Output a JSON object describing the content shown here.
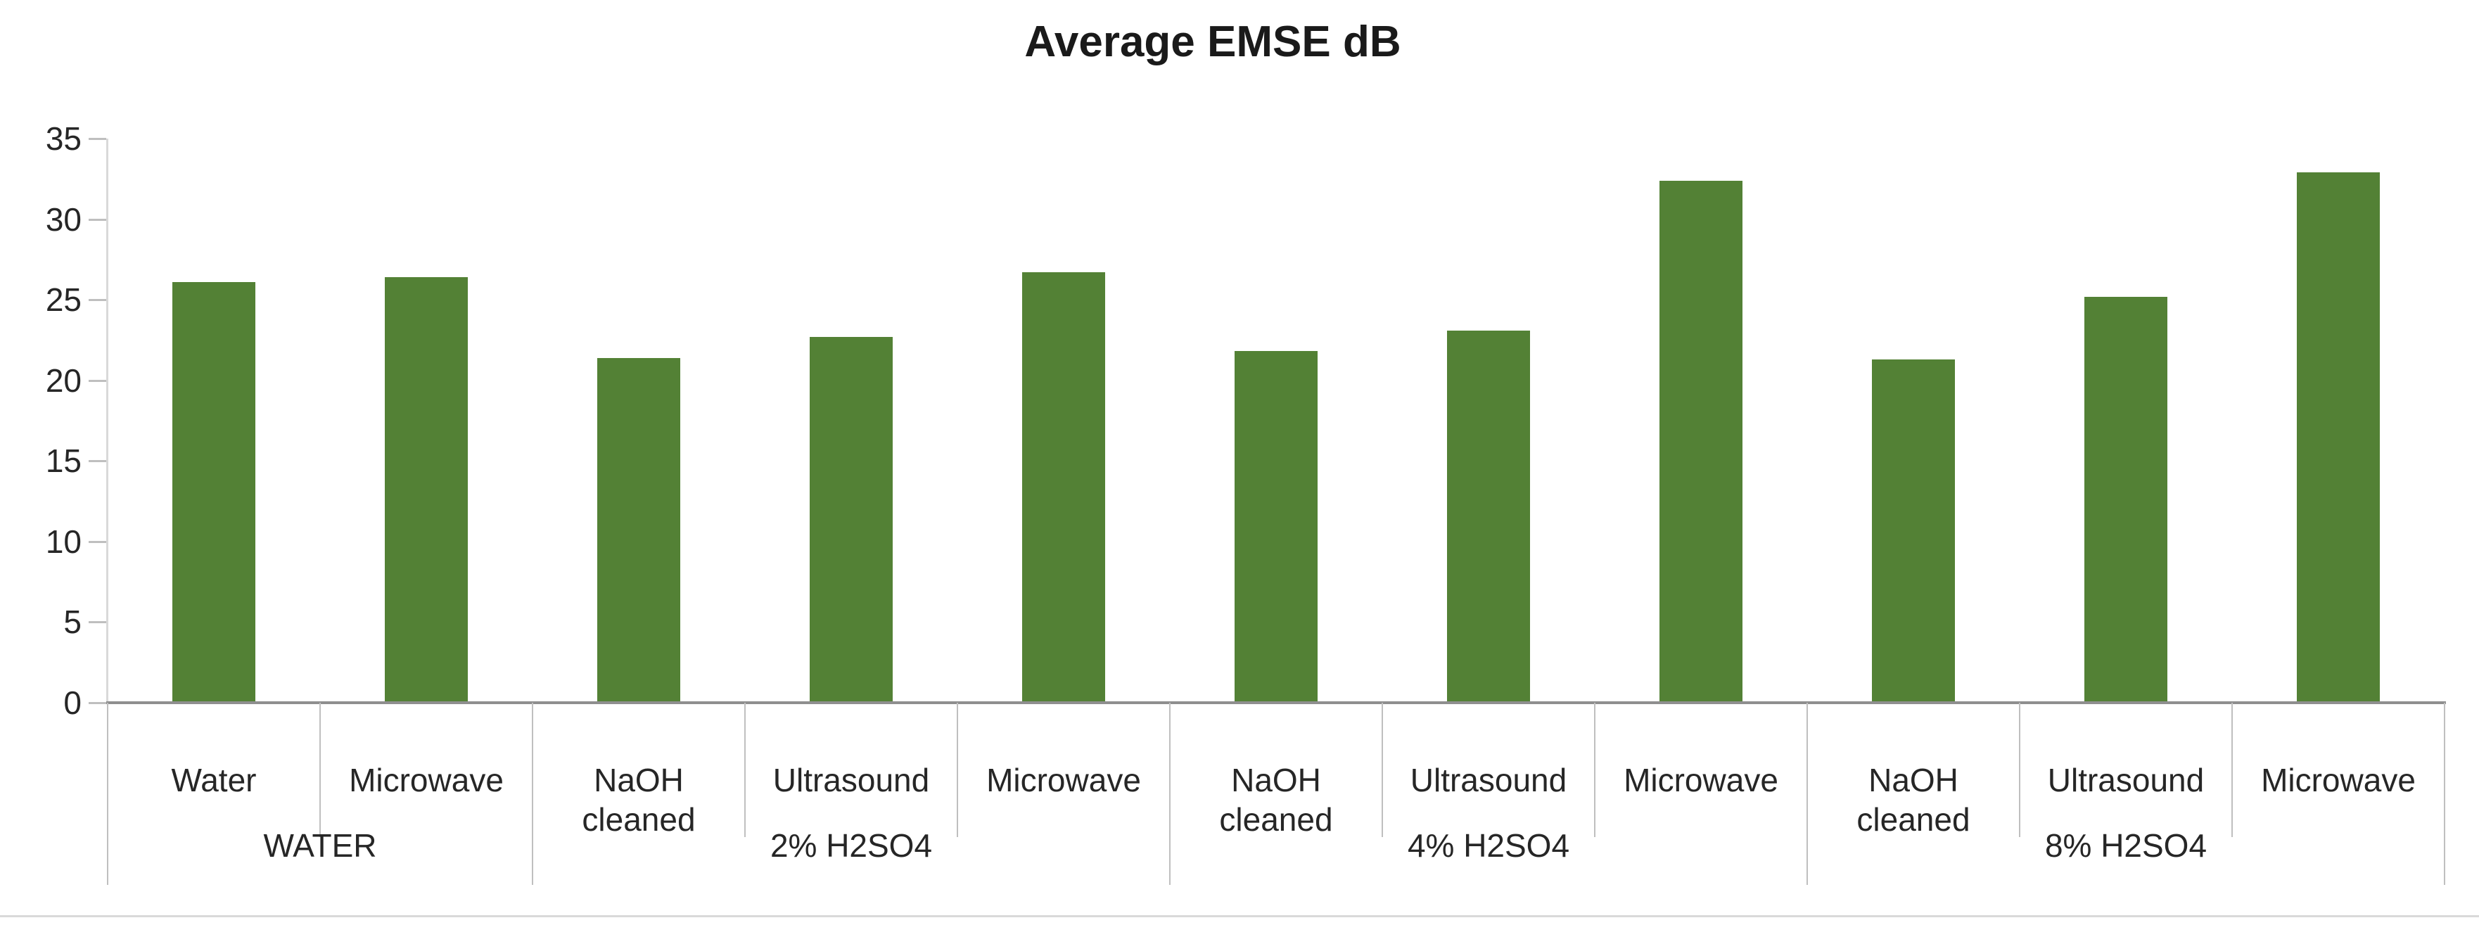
{
  "title": "Average EMSE dB",
  "colors": {
    "bar_fill": "#538135",
    "baseline": "#8f8f8f",
    "separator": "#bfbfbf",
    "value_axis_line": "#d9d9d9",
    "tick_mark": "#bfbfbf",
    "bottom_border": "#d9d9d9",
    "text": "#262626"
  },
  "y_axis": {
    "min": 0,
    "max": 35,
    "step": 5
  },
  "chart_data": {
    "type": "bar",
    "title": "Average EMSE dB",
    "xlabel": "",
    "ylabel": "",
    "ylim": [
      0,
      35
    ],
    "y_ticks": [
      0,
      5,
      10,
      15,
      20,
      25,
      30,
      35
    ],
    "grid": false,
    "legend_position": "none",
    "bar_color": "#538135",
    "groups": [
      {
        "label": "WATER",
        "categories": [
          "Water",
          "Microwave"
        ],
        "values": [
          26.1,
          26.4
        ]
      },
      {
        "label": "2% H2SO4",
        "categories": [
          "NaOH cleaned",
          "Ultrasound",
          "Microwave"
        ],
        "values": [
          21.4,
          22.7,
          26.7
        ]
      },
      {
        "label": "4% H2SO4",
        "categories": [
          "NaOH cleaned",
          "Ultrasound",
          "Microwave"
        ],
        "values": [
          21.8,
          23.1,
          32.4
        ]
      },
      {
        "label": "8% H2SO4",
        "categories": [
          "NaOH cleaned",
          "Ultrasound",
          "Microwave"
        ],
        "values": [
          21.3,
          25.2,
          32.9
        ]
      }
    ]
  }
}
